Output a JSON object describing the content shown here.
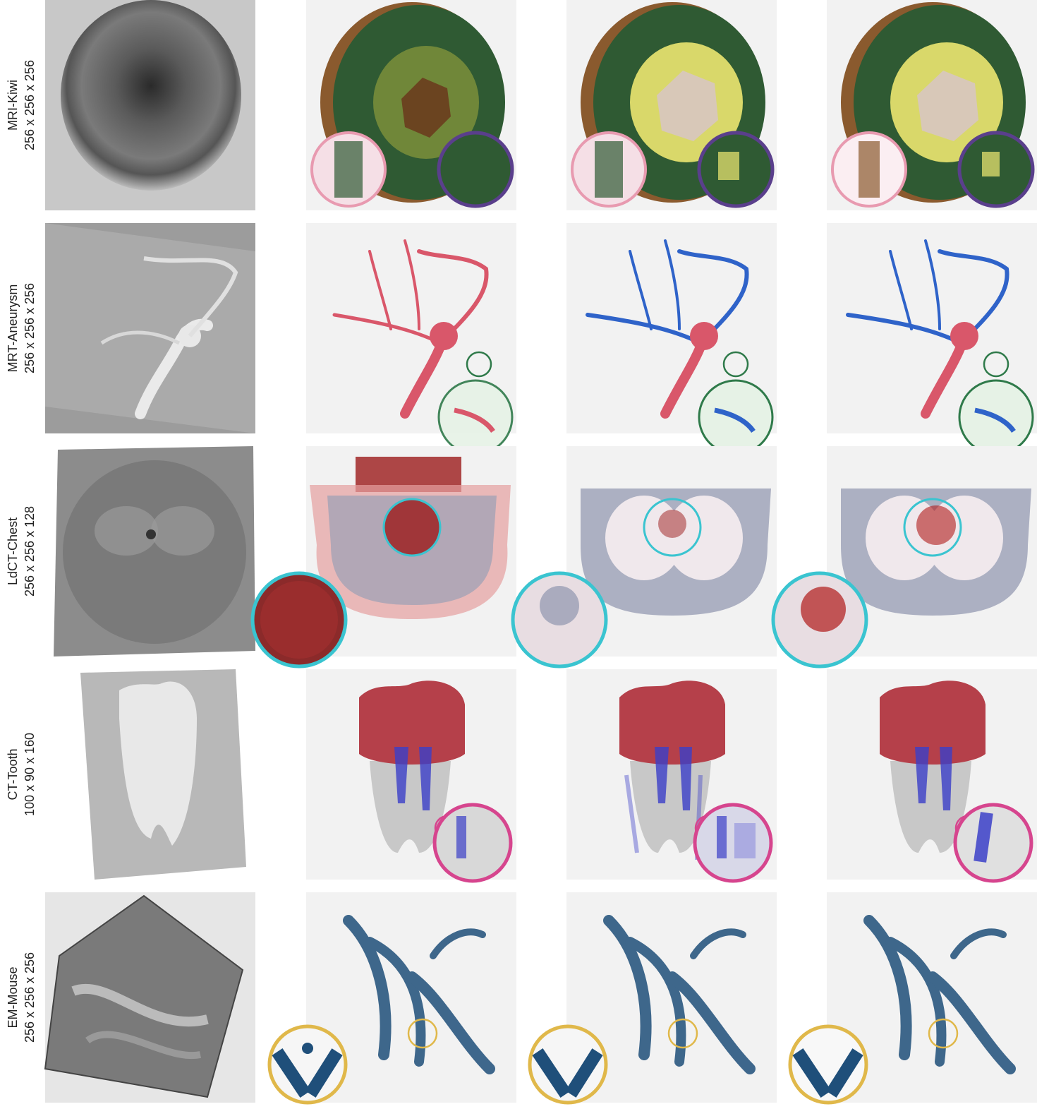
{
  "figure": {
    "rows": [
      {
        "name": "MRI-Kiwi",
        "dims": "256 x 256 x 256"
      },
      {
        "name": "MRT-Aneurysm",
        "dims": "256 x 256 x 256"
      },
      {
        "name": "LdCT-Chest",
        "dims": "256 x 256 x 128"
      },
      {
        "name": "CT-Tooth",
        "dims": "100 x 90 x 160"
      },
      {
        "name": "EM-Mouse",
        "dims": "256 x 256 x 256"
      }
    ],
    "colors": {
      "kiwi_green": "#2f5a33",
      "kiwi_yellow": "#d9d86a",
      "kiwi_skin": "#8a5a2e",
      "kiwi_core": "#d8c8b8",
      "vessel_red": "#d9576a",
      "vessel_blue": "#2f63c9",
      "chest_gray": "#9a9fb5",
      "chest_red": "#9b1a1a",
      "tooth_red": "#b5404a",
      "tooth_blue": "#3b3fc8",
      "mouse_blue": "#1f4f7a",
      "lens_pink": "#e89ab0",
      "lens_purple": "#5a3f8c",
      "lens_green": "#2f7a4a",
      "lens_cyan": "#3ac4d0",
      "lens_magenta": "#d6458e",
      "lens_yellow": "#e0b84a"
    }
  }
}
